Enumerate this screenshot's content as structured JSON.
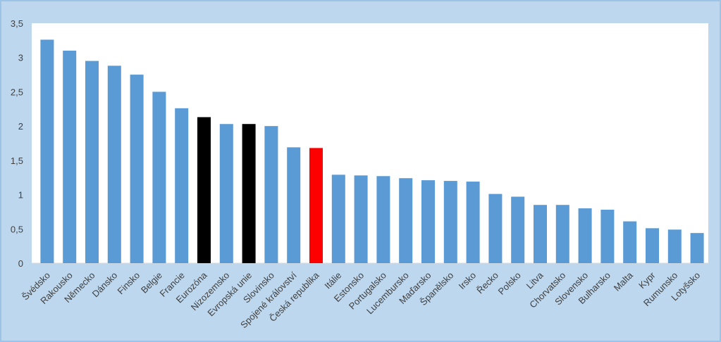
{
  "chart_data": {
    "type": "bar",
    "title": "",
    "xlabel": "",
    "ylabel": "",
    "ylim": [
      0,
      3.5
    ],
    "yticks": [
      "0",
      "0,5",
      "1",
      "1,5",
      "2",
      "2,5",
      "3",
      "3,5"
    ],
    "grid": false,
    "legend": "none",
    "colors": {
      "default": "#5b9bd5",
      "Eurozóna": "#000000",
      "Evropská unie": "#000000",
      "Česká republika": "#ff0000",
      "frame_background": "#bdd7ee",
      "plot_background": "#ffffff",
      "axis": "#d9d9d9",
      "text": "#404040"
    },
    "categories": [
      "Švédsko",
      "Rakousko",
      "Německo",
      "Dánsko",
      "Finsko",
      "Belgie",
      "Francie",
      "Eurozóna",
      "Nizozemsko",
      "Evropská unie",
      "Slovinsko",
      "Spojené království",
      "Česká republika",
      "Itálie",
      "Estonsko",
      "Portugalsko",
      "Lucembursko",
      "Maďarsko",
      "Španělsko",
      "Irsko",
      "Řecko",
      "Polsko",
      "Litva",
      "Chorvatsko",
      "Slovensko",
      "Bulharsko",
      "Malta",
      "Kypr",
      "Rumunsko",
      "Lotyšsko"
    ],
    "values": [
      3.26,
      3.1,
      2.95,
      2.88,
      2.75,
      2.5,
      2.26,
      2.13,
      2.03,
      2.03,
      2.0,
      1.69,
      1.68,
      1.29,
      1.28,
      1.27,
      1.24,
      1.21,
      1.2,
      1.19,
      1.01,
      0.97,
      0.85,
      0.85,
      0.8,
      0.78,
      0.61,
      0.51,
      0.49,
      0.44
    ]
  }
}
